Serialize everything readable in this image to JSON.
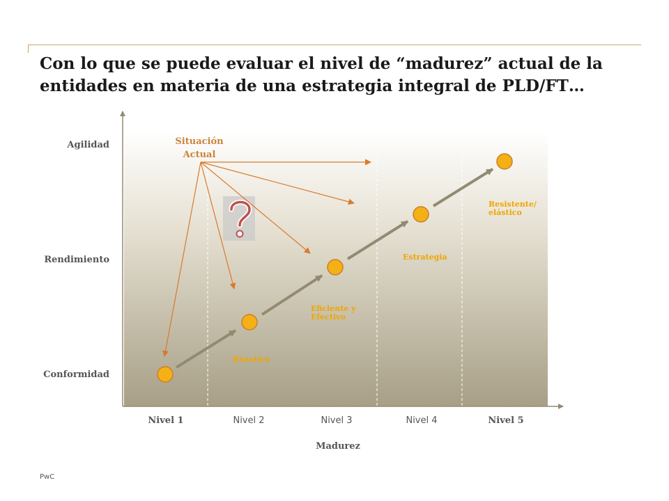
{
  "title": "Con lo que se puede evaluar el nivel de “madurez” actual de la entidades en materia de una estrategia integral de PLD/FT…",
  "y_axis": {
    "levels": [
      "Agilidad",
      "Rendimiento",
      "Conformidad"
    ]
  },
  "x_axis": {
    "title": "Madurez",
    "levels": [
      "Nivel 1",
      "Nivel 2",
      "Nivel 3",
      "Nivel 4",
      "Nivel 5"
    ]
  },
  "current_situation": {
    "label": "Situación Actual"
  },
  "stages": [
    "Reactivo",
    "Eficiente y Efectivo",
    "Estrategia",
    "Resistente/ elástico"
  ],
  "colors": {
    "node_fill": "#f5b016",
    "node_stroke": "#c9802a",
    "trend_line": "#938a73",
    "arrow": "#d97a2b",
    "stage_text": "#f0a500",
    "gradient_top": "#ffffff",
    "gradient_bottom": "#a79f86"
  },
  "icons": {
    "question": "question-mark-icon"
  },
  "footer": "PwC"
}
